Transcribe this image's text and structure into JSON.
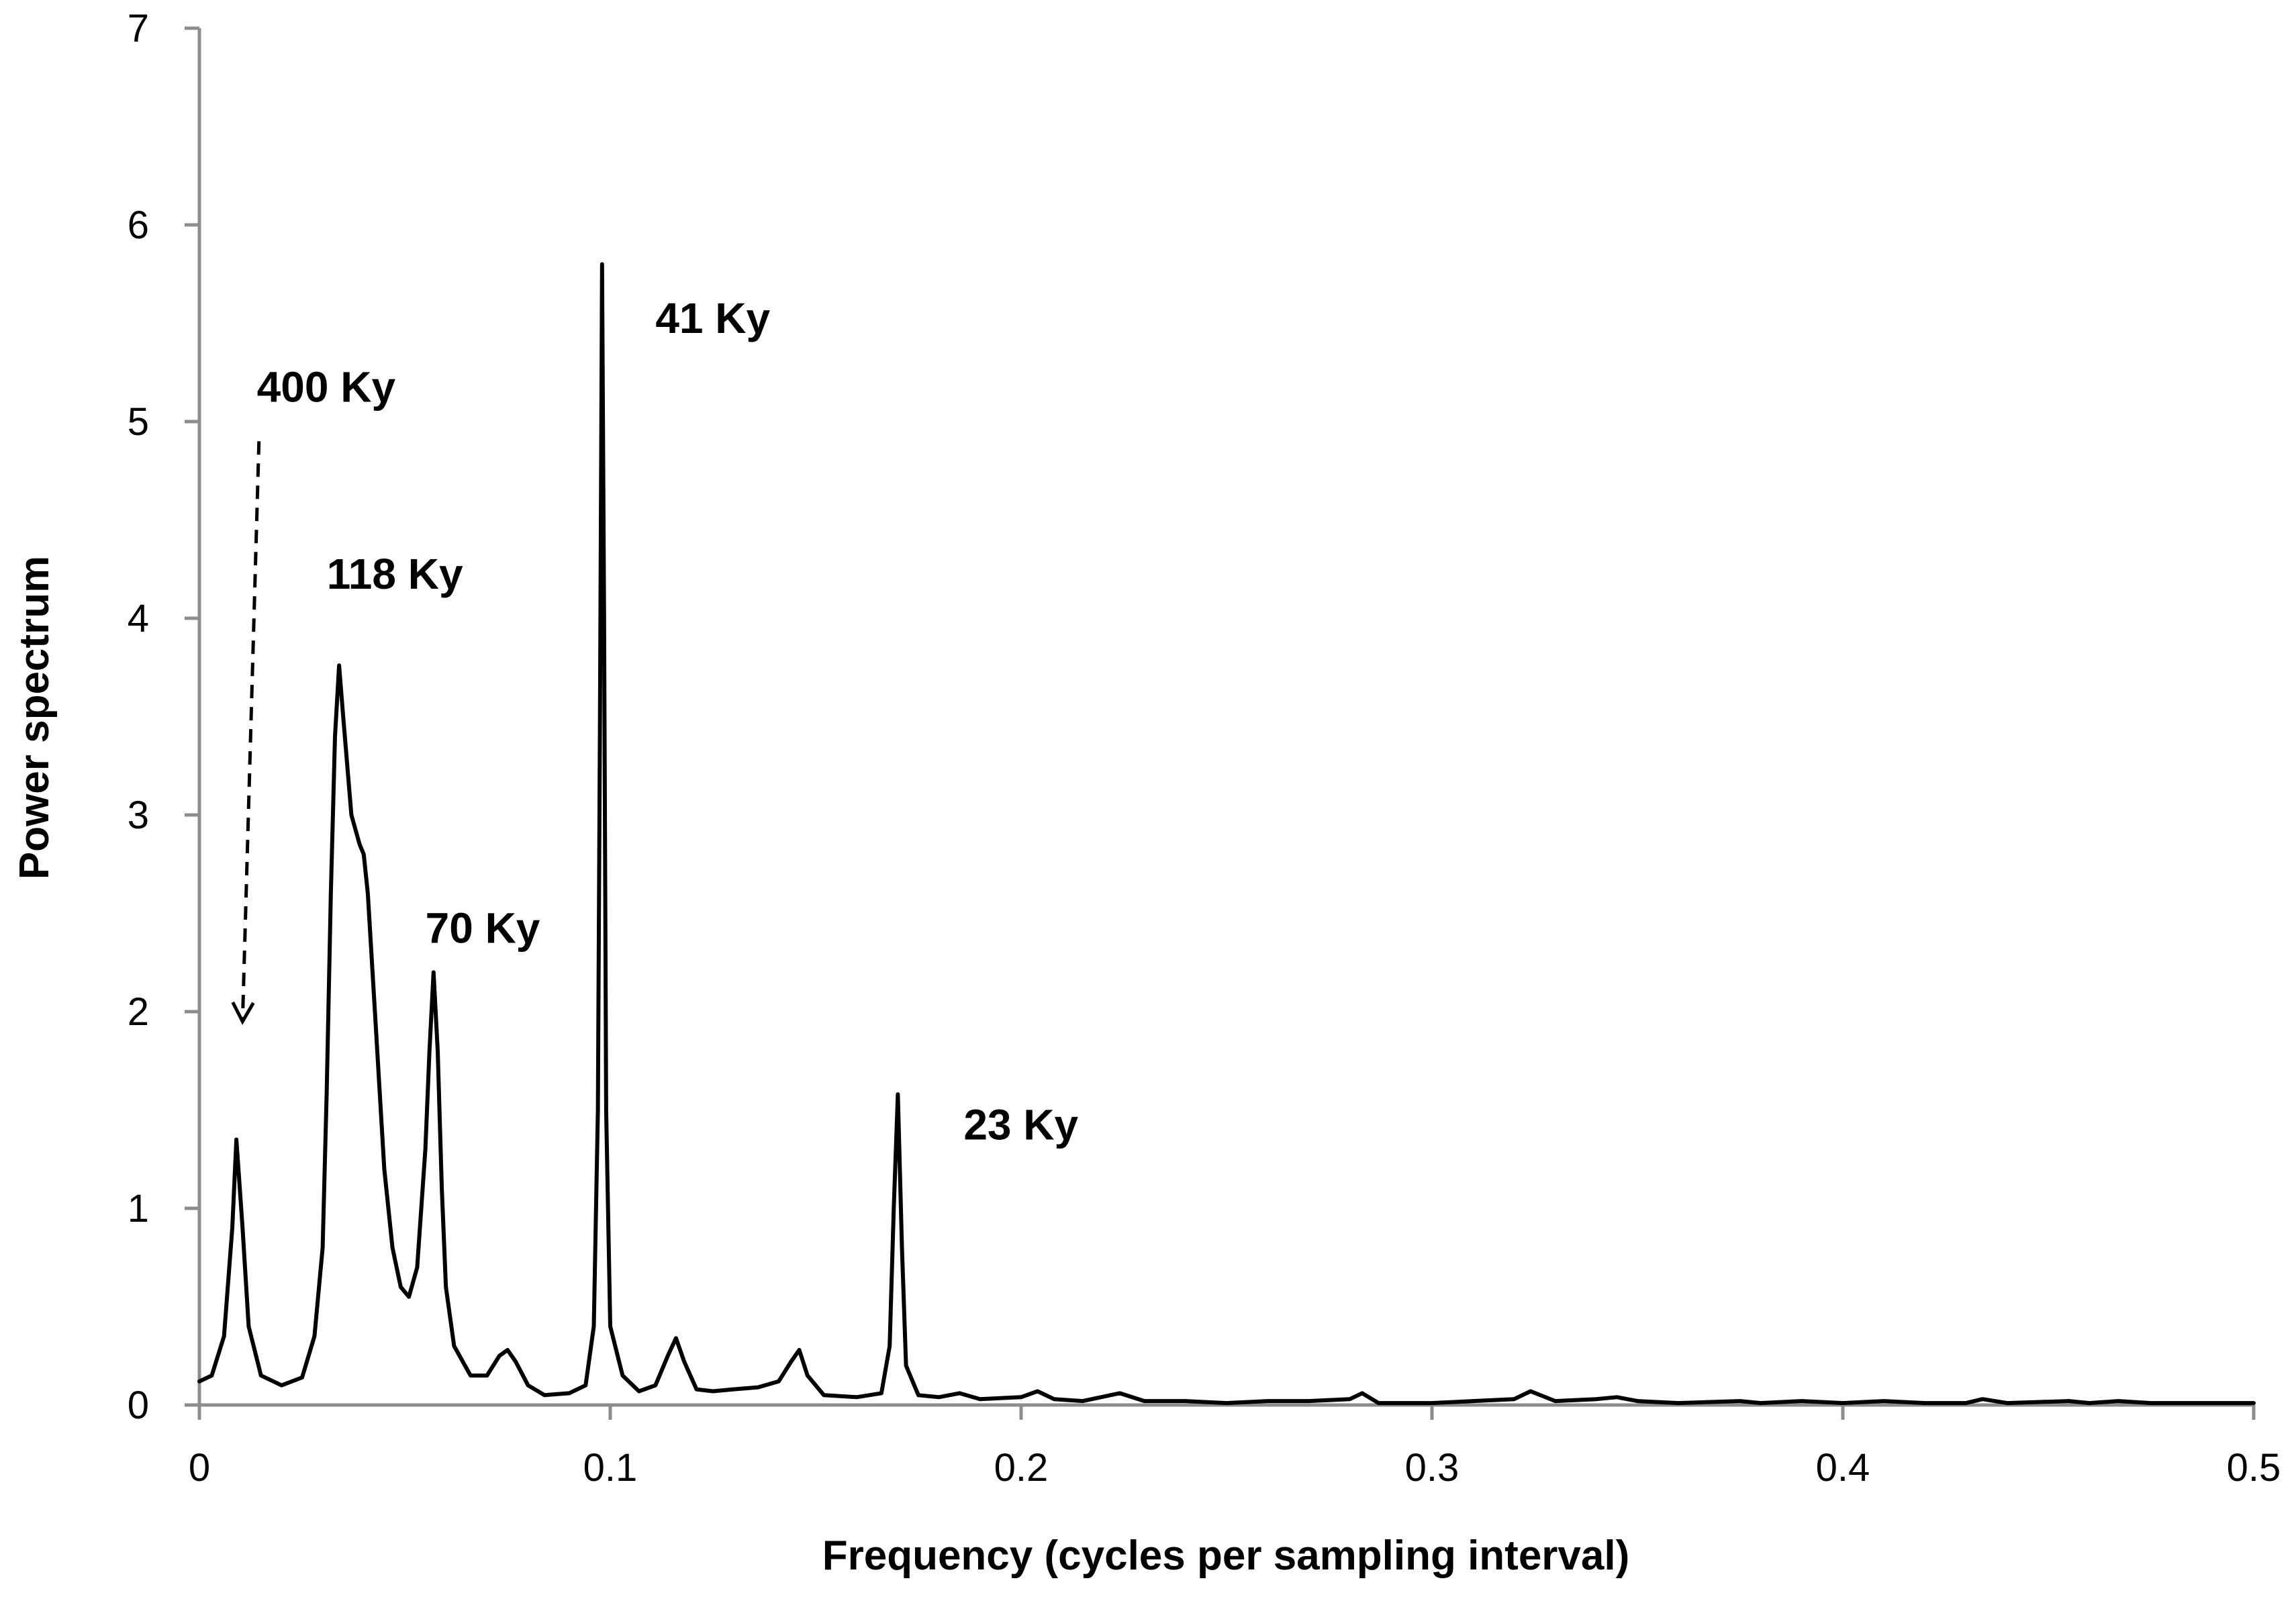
{
  "chart_data": {
    "type": "line",
    "title": "",
    "xlabel": "Frequency (cycles per sampling interval)",
    "ylabel": "Power spectrum",
    "xlim": [
      0,
      0.5
    ],
    "ylim": [
      0,
      7
    ],
    "grid": false,
    "legend": "none",
    "x_ticks": [
      "0",
      "0.1",
      "0.2",
      "0.3",
      "0.4",
      "0.5"
    ],
    "y_ticks": [
      "0",
      "1",
      "2",
      "3",
      "4",
      "5",
      "6",
      "7"
    ],
    "series": [
      {
        "name": "Power spectrum",
        "color": "#000000",
        "points": [
          [
            0.0,
            0.12
          ],
          [
            0.003,
            0.15
          ],
          [
            0.006,
            0.35
          ],
          [
            0.008,
            0.9
          ],
          [
            0.009,
            1.35
          ],
          [
            0.0105,
            0.9
          ],
          [
            0.012,
            0.4
          ],
          [
            0.015,
            0.15
          ],
          [
            0.02,
            0.1
          ],
          [
            0.025,
            0.14
          ],
          [
            0.028,
            0.35
          ],
          [
            0.03,
            0.8
          ],
          [
            0.031,
            1.6
          ],
          [
            0.032,
            2.6
          ],
          [
            0.033,
            3.4
          ],
          [
            0.034,
            3.76
          ],
          [
            0.035,
            3.5
          ],
          [
            0.037,
            3.0
          ],
          [
            0.039,
            2.85
          ],
          [
            0.04,
            2.8
          ],
          [
            0.041,
            2.6
          ],
          [
            0.043,
            1.9
          ],
          [
            0.045,
            1.2
          ],
          [
            0.047,
            0.8
          ],
          [
            0.049,
            0.6
          ],
          [
            0.051,
            0.55
          ],
          [
            0.053,
            0.7
          ],
          [
            0.055,
            1.3
          ],
          [
            0.056,
            1.8
          ],
          [
            0.057,
            2.2
          ],
          [
            0.058,
            1.8
          ],
          [
            0.059,
            1.1
          ],
          [
            0.06,
            0.6
          ],
          [
            0.062,
            0.3
          ],
          [
            0.066,
            0.15
          ],
          [
            0.07,
            0.15
          ],
          [
            0.073,
            0.25
          ],
          [
            0.075,
            0.28
          ],
          [
            0.077,
            0.22
          ],
          [
            0.08,
            0.1
          ],
          [
            0.084,
            0.05
          ],
          [
            0.09,
            0.06
          ],
          [
            0.094,
            0.1
          ],
          [
            0.096,
            0.4
          ],
          [
            0.097,
            1.5
          ],
          [
            0.0975,
            3.5
          ],
          [
            0.098,
            5.8
          ],
          [
            0.0985,
            4.0
          ],
          [
            0.099,
            1.5
          ],
          [
            0.1,
            0.4
          ],
          [
            0.103,
            0.15
          ],
          [
            0.107,
            0.07
          ],
          [
            0.111,
            0.1
          ],
          [
            0.114,
            0.25
          ],
          [
            0.116,
            0.34
          ],
          [
            0.118,
            0.22
          ],
          [
            0.121,
            0.08
          ],
          [
            0.125,
            0.07
          ],
          [
            0.13,
            0.08
          ],
          [
            0.136,
            0.09
          ],
          [
            0.141,
            0.12
          ],
          [
            0.144,
            0.22
          ],
          [
            0.146,
            0.28
          ],
          [
            0.148,
            0.15
          ],
          [
            0.152,
            0.05
          ],
          [
            0.16,
            0.04
          ],
          [
            0.166,
            0.06
          ],
          [
            0.168,
            0.3
          ],
          [
            0.169,
            1.0
          ],
          [
            0.17,
            1.58
          ],
          [
            0.171,
            0.8
          ],
          [
            0.172,
            0.2
          ],
          [
            0.175,
            0.05
          ],
          [
            0.18,
            0.04
          ],
          [
            0.185,
            0.06
          ],
          [
            0.19,
            0.03
          ],
          [
            0.2,
            0.04
          ],
          [
            0.204,
            0.07
          ],
          [
            0.208,
            0.03
          ],
          [
            0.215,
            0.02
          ],
          [
            0.224,
            0.06
          ],
          [
            0.23,
            0.02
          ],
          [
            0.24,
            0.02
          ],
          [
            0.25,
            0.01
          ],
          [
            0.26,
            0.02
          ],
          [
            0.27,
            0.02
          ],
          [
            0.28,
            0.03
          ],
          [
            0.283,
            0.06
          ],
          [
            0.287,
            0.01
          ],
          [
            0.3,
            0.01
          ],
          [
            0.31,
            0.02
          ],
          [
            0.32,
            0.03
          ],
          [
            0.324,
            0.07
          ],
          [
            0.33,
            0.02
          ],
          [
            0.34,
            0.03
          ],
          [
            0.345,
            0.04
          ],
          [
            0.35,
            0.02
          ],
          [
            0.36,
            0.01
          ],
          [
            0.375,
            0.02
          ],
          [
            0.38,
            0.01
          ],
          [
            0.39,
            0.02
          ],
          [
            0.4,
            0.01
          ],
          [
            0.41,
            0.02
          ],
          [
            0.42,
            0.01
          ],
          [
            0.43,
            0.01
          ],
          [
            0.434,
            0.03
          ],
          [
            0.44,
            0.01
          ],
          [
            0.455,
            0.02
          ],
          [
            0.46,
            0.01
          ],
          [
            0.467,
            0.02
          ],
          [
            0.475,
            0.01
          ],
          [
            0.49,
            0.01
          ],
          [
            0.5,
            0.01
          ]
        ]
      }
    ],
    "annotations": [
      {
        "text": "400 Ky",
        "x": 0.014,
        "y": 5.1
      },
      {
        "text": "118 Ky",
        "x": 0.031,
        "y": 4.15
      },
      {
        "text": "70 Ky",
        "x": 0.055,
        "y": 2.35
      },
      {
        "text": "41 Ky",
        "x": 0.111,
        "y": 5.45
      },
      {
        "text": "23 Ky",
        "x": 0.186,
        "y": 1.35
      }
    ],
    "arrow": {
      "style": "dashed",
      "from": [
        0.0145,
        4.9
      ],
      "to": [
        0.0105,
        1.95
      ]
    }
  }
}
